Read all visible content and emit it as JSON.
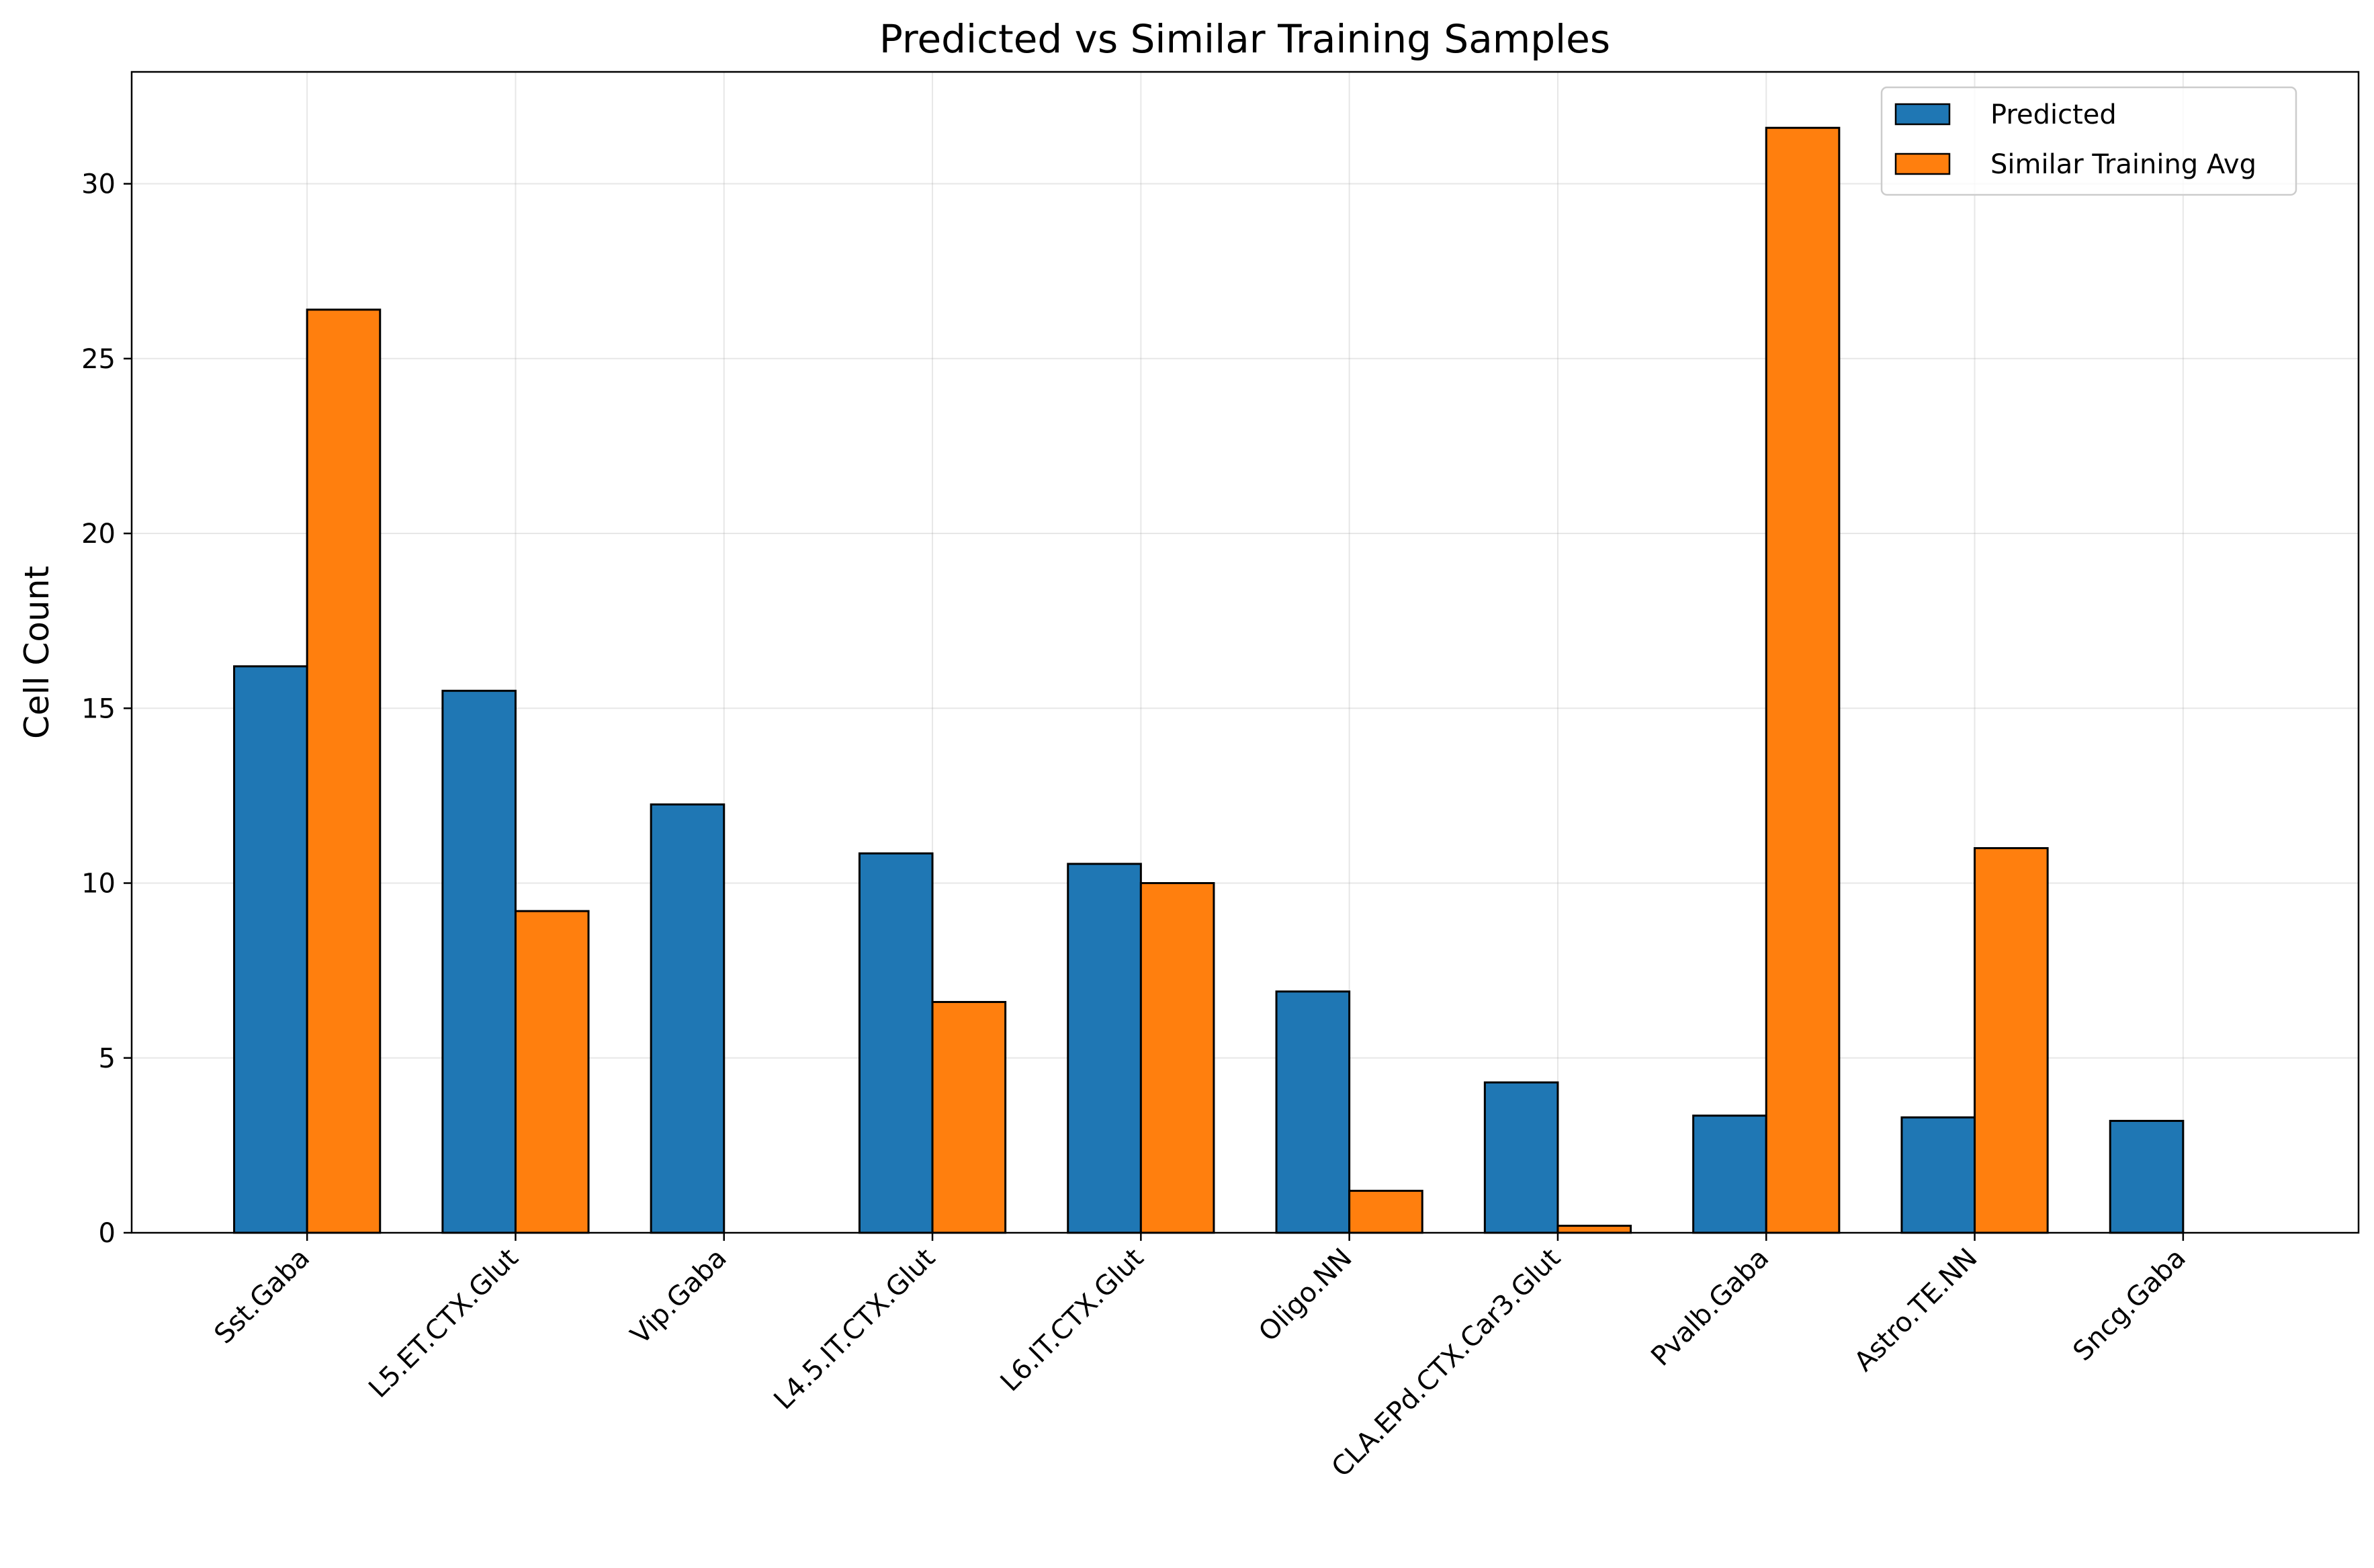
{
  "chart_data": {
    "type": "bar",
    "title": "Predicted vs Similar Training Samples",
    "xlabel": "",
    "ylabel": "Cell Count",
    "categories": [
      "Sst.Gaba",
      "L5.ET.CTX.Glut",
      "Vip.Gaba",
      "L4.5.IT.CTX.Glut",
      "L6.IT.CTX.Glut",
      "Oligo.NN",
      "CLA.EPd.CTX.Car3.Glut",
      "Pvalb.Gaba",
      "Astro.TE.NN",
      "Sncg.Gaba"
    ],
    "series": [
      {
        "name": "Predicted",
        "color": "#1f77b4",
        "values": [
          16.2,
          15.5,
          12.25,
          10.85,
          10.55,
          6.9,
          4.3,
          3.35,
          3.3,
          3.2
        ]
      },
      {
        "name": "Similar Training Avg",
        "color": "#ff7f0e",
        "values": [
          26.4,
          9.2,
          0.0,
          6.6,
          10.0,
          1.2,
          0.2,
          31.6,
          11.0,
          0.0
        ]
      }
    ],
    "ylim": [
      0,
      33.2
    ],
    "yticks": [
      0,
      5,
      10,
      15,
      20,
      25,
      30
    ],
    "grid": true,
    "legend_position": "top-right"
  }
}
